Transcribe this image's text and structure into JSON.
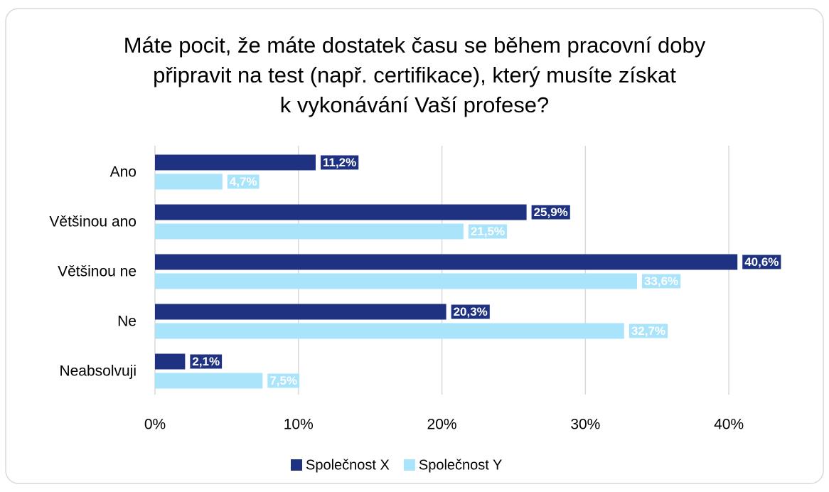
{
  "chart_data": {
    "type": "bar",
    "orientation": "horizontal",
    "title": [
      "Máte pocit, že máte dostatek času se během pracovní doby",
      "připravit na test (např. certifikace), který musíte získat",
      "k vykonávání Vaší profese?"
    ],
    "categories": [
      "Ano",
      "Většinou ano",
      "Většinou ne",
      "Ne",
      "Neabsolvuji"
    ],
    "series": [
      {
        "name": "Společnost X",
        "color": "#1f3282",
        "values": [
          11.2,
          25.9,
          40.6,
          20.3,
          2.1
        ],
        "value_labels": [
          "11,2%",
          "25,9%",
          "40,6%",
          "20,3%",
          "2,1%"
        ]
      },
      {
        "name": "Společnost Y",
        "color": "#a9e4fb",
        "values": [
          4.7,
          21.5,
          33.6,
          32.7,
          7.5
        ],
        "value_labels": [
          "4,7%",
          "21,5%",
          "33,6%",
          "32,7%",
          "7,5%"
        ]
      }
    ],
    "xlim": [
      0,
      45
    ],
    "xticks": [
      {
        "value": 0,
        "label": "0%"
      },
      {
        "value": 10,
        "label": "10%"
      },
      {
        "value": 20,
        "label": "20%"
      },
      {
        "value": 30,
        "label": "30%"
      },
      {
        "value": 40,
        "label": "40%"
      }
    ],
    "grid": true,
    "legend": "bottom"
  }
}
